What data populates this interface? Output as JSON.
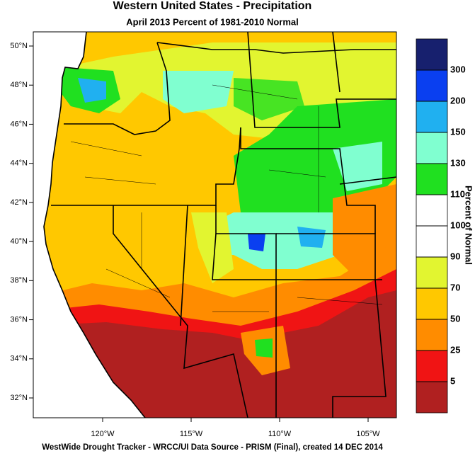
{
  "header": {
    "title": "Western United States - Precipitation",
    "subtitle": "April 2013  Percent of 1981-2010 Normal"
  },
  "map": {
    "lat_labels": [
      "50°N",
      "48°N",
      "46°N",
      "44°N",
      "42°N",
      "40°N",
      "38°N",
      "36°N",
      "34°N",
      "32°N"
    ],
    "lon_labels": [
      "120°W",
      "115°W",
      "110°W",
      "105°W"
    ]
  },
  "legend": {
    "title": "Percent of Normal",
    "levels": [
      300,
      200,
      150,
      130,
      110,
      100,
      90,
      70,
      50,
      25,
      5
    ],
    "colors": [
      "#17206e",
      "#0a3ff0",
      "#20b0f0",
      "#80ffd0",
      "#20e020",
      "#ffffff",
      "#ffffff",
      "#e2f530",
      "#ffc800",
      "#ff8c00",
      "#f01414",
      "#b02020"
    ]
  },
  "footer": "WestWide Drought Tracker - WRCC/UI  Data Source - PRISM (Final), created 14 DEC 2014"
}
